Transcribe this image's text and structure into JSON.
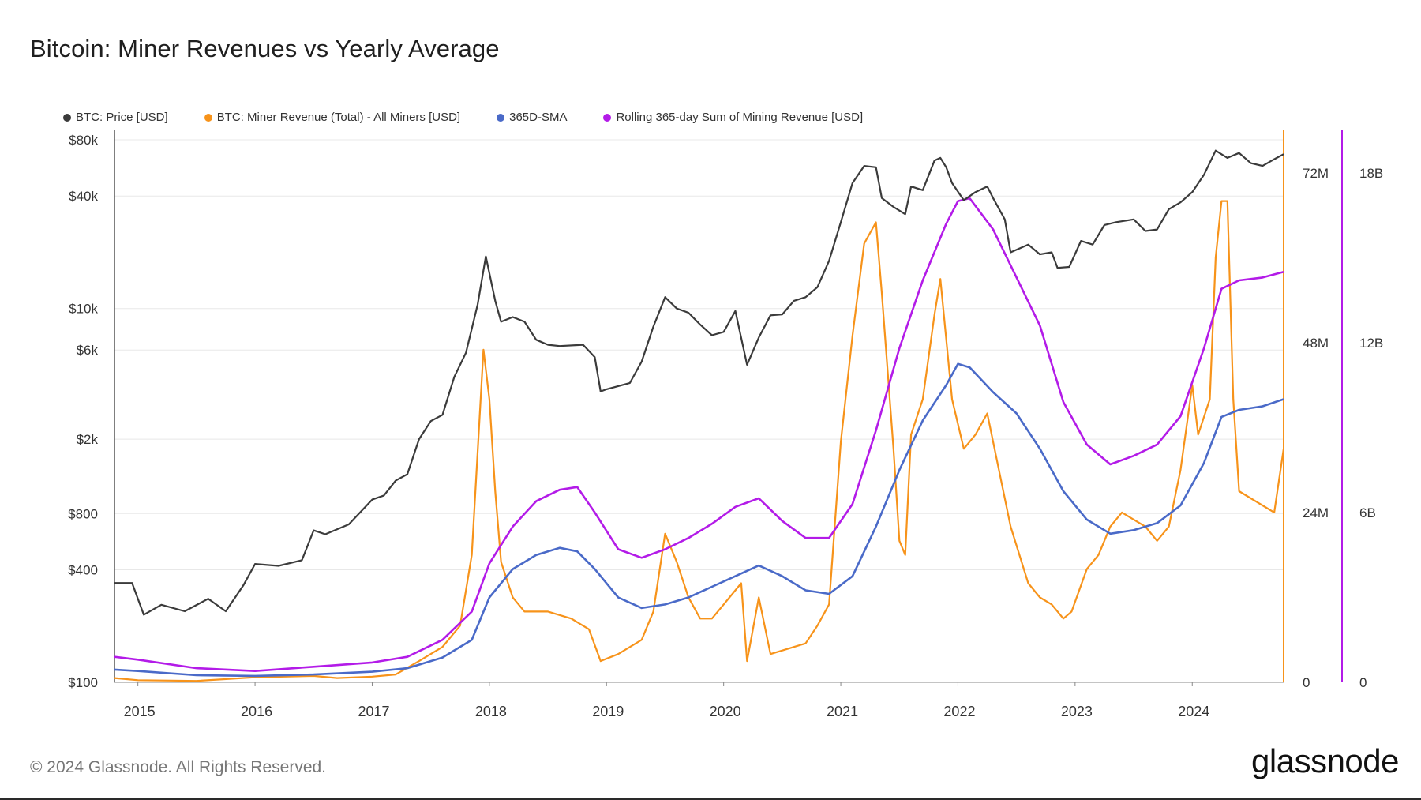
{
  "title": "Bitcoin: Miner Revenues vs Yearly Average",
  "footer": "© 2024 Glassnode. All Rights Reserved.",
  "brand": "glassnode",
  "colors": {
    "price": "#3b3b3b",
    "revenue": "#f7931a",
    "sma": "#4a6ac8",
    "rolling": "#b31be8",
    "grid": "#e8e8e8"
  },
  "chart_data": {
    "type": "line",
    "x_axis": {
      "ticks": [
        "2015",
        "2016",
        "2017",
        "2018",
        "2019",
        "2020",
        "2021",
        "2022",
        "2023",
        "2024"
      ],
      "range": [
        2014.8,
        2024.78
      ]
    },
    "y_left": {
      "scale": "log",
      "ticks": [
        "$100",
        "$400",
        "$800",
        "$2k",
        "$6k",
        "$10k",
        "$40k",
        "$80k"
      ],
      "tick_values": [
        100,
        400,
        800,
        2000,
        6000,
        10000,
        40000,
        80000
      ],
      "range": [
        100,
        80000
      ]
    },
    "y_right_1": {
      "ticks": [
        "0",
        "24M",
        "48M",
        "72M"
      ],
      "tick_values": [
        0,
        24000000,
        48000000,
        72000000
      ],
      "range": [
        0,
        78000000
      ]
    },
    "y_right_2": {
      "ticks": [
        "0",
        "6B",
        "12B",
        "18B"
      ],
      "tick_values": [
        0,
        6000000000,
        12000000000,
        18000000000
      ],
      "range": [
        0,
        19500000000
      ]
    },
    "grid": true,
    "legend_position": "top-left",
    "series": [
      {
        "name": "BTC: Price [USD]",
        "axis": "y_left",
        "points": [
          [
            2014.8,
            340
          ],
          [
            2014.95,
            340
          ],
          [
            2015.05,
            230
          ],
          [
            2015.2,
            260
          ],
          [
            2015.4,
            240
          ],
          [
            2015.6,
            280
          ],
          [
            2015.75,
            240
          ],
          [
            2015.9,
            330
          ],
          [
            2016.0,
            430
          ],
          [
            2016.2,
            420
          ],
          [
            2016.4,
            450
          ],
          [
            2016.5,
            650
          ],
          [
            2016.6,
            620
          ],
          [
            2016.8,
            700
          ],
          [
            2017.0,
            950
          ],
          [
            2017.1,
            1000
          ],
          [
            2017.2,
            1200
          ],
          [
            2017.3,
            1300
          ],
          [
            2017.4,
            2000
          ],
          [
            2017.5,
            2500
          ],
          [
            2017.6,
            2700
          ],
          [
            2017.7,
            4300
          ],
          [
            2017.8,
            5800
          ],
          [
            2017.9,
            10500
          ],
          [
            2017.97,
            19000
          ],
          [
            2018.05,
            11000
          ],
          [
            2018.1,
            8500
          ],
          [
            2018.2,
            9000
          ],
          [
            2018.3,
            8500
          ],
          [
            2018.4,
            6800
          ],
          [
            2018.5,
            6400
          ],
          [
            2018.6,
            6300
          ],
          [
            2018.8,
            6400
          ],
          [
            2018.9,
            5500
          ],
          [
            2018.95,
            3600
          ],
          [
            2019.0,
            3700
          ],
          [
            2019.2,
            4000
          ],
          [
            2019.3,
            5200
          ],
          [
            2019.4,
            8000
          ],
          [
            2019.5,
            11500
          ],
          [
            2019.6,
            10000
          ],
          [
            2019.7,
            9500
          ],
          [
            2019.8,
            8200
          ],
          [
            2019.9,
            7200
          ],
          [
            2020.0,
            7500
          ],
          [
            2020.1,
            9700
          ],
          [
            2020.2,
            5000
          ],
          [
            2020.3,
            7000
          ],
          [
            2020.4,
            9200
          ],
          [
            2020.5,
            9300
          ],
          [
            2020.6,
            11000
          ],
          [
            2020.7,
            11500
          ],
          [
            2020.8,
            13000
          ],
          [
            2020.9,
            18000
          ],
          [
            2021.0,
            29000
          ],
          [
            2021.1,
            47000
          ],
          [
            2021.2,
            58000
          ],
          [
            2021.3,
            57000
          ],
          [
            2021.35,
            39000
          ],
          [
            2021.45,
            35000
          ],
          [
            2021.55,
            32000
          ],
          [
            2021.6,
            45000
          ],
          [
            2021.7,
            43000
          ],
          [
            2021.8,
            62000
          ],
          [
            2021.85,
            64000
          ],
          [
            2021.9,
            57000
          ],
          [
            2021.95,
            47000
          ],
          [
            2022.05,
            38000
          ],
          [
            2022.15,
            42000
          ],
          [
            2022.25,
            45000
          ],
          [
            2022.3,
            39000
          ],
          [
            2022.4,
            30000
          ],
          [
            2022.45,
            20000
          ],
          [
            2022.6,
            22000
          ],
          [
            2022.7,
            19500
          ],
          [
            2022.8,
            20000
          ],
          [
            2022.85,
            16500
          ],
          [
            2022.95,
            16700
          ],
          [
            2023.05,
            23000
          ],
          [
            2023.15,
            22000
          ],
          [
            2023.25,
            28000
          ],
          [
            2023.35,
            29000
          ],
          [
            2023.5,
            30000
          ],
          [
            2023.6,
            26000
          ],
          [
            2023.7,
            26500
          ],
          [
            2023.8,
            34000
          ],
          [
            2023.9,
            37000
          ],
          [
            2024.0,
            42000
          ],
          [
            2024.1,
            52000
          ],
          [
            2024.2,
            70000
          ],
          [
            2024.3,
            64000
          ],
          [
            2024.4,
            68000
          ],
          [
            2024.5,
            60000
          ],
          [
            2024.6,
            58000
          ],
          [
            2024.7,
            63000
          ],
          [
            2024.78,
            67000
          ]
        ]
      },
      {
        "name": "BTC: Miner Revenue (Total) - All Miners [USD]",
        "axis": "y_right_1",
        "points": [
          [
            2014.8,
            600000
          ],
          [
            2015.0,
            300000
          ],
          [
            2015.5,
            200000
          ],
          [
            2016.0,
            700000
          ],
          [
            2016.5,
            900000
          ],
          [
            2016.7,
            600000
          ],
          [
            2017.0,
            800000
          ],
          [
            2017.2,
            1100000
          ],
          [
            2017.4,
            3000000
          ],
          [
            2017.6,
            5000000
          ],
          [
            2017.75,
            8000000
          ],
          [
            2017.85,
            18000000
          ],
          [
            2017.95,
            47000000
          ],
          [
            2018.0,
            40000000
          ],
          [
            2018.05,
            27000000
          ],
          [
            2018.1,
            17000000
          ],
          [
            2018.2,
            12000000
          ],
          [
            2018.3,
            10000000
          ],
          [
            2018.5,
            10000000
          ],
          [
            2018.7,
            9000000
          ],
          [
            2018.85,
            7500000
          ],
          [
            2018.95,
            3000000
          ],
          [
            2019.1,
            4000000
          ],
          [
            2019.3,
            6000000
          ],
          [
            2019.4,
            10000000
          ],
          [
            2019.5,
            21000000
          ],
          [
            2019.6,
            17000000
          ],
          [
            2019.7,
            12000000
          ],
          [
            2019.8,
            9000000
          ],
          [
            2019.9,
            9000000
          ],
          [
            2020.0,
            11000000
          ],
          [
            2020.15,
            14000000
          ],
          [
            2020.2,
            3000000
          ],
          [
            2020.3,
            12000000
          ],
          [
            2020.4,
            4000000
          ],
          [
            2020.5,
            4500000
          ],
          [
            2020.6,
            5000000
          ],
          [
            2020.7,
            5500000
          ],
          [
            2020.8,
            8000000
          ],
          [
            2020.9,
            11000000
          ],
          [
            2021.0,
            34000000
          ],
          [
            2021.1,
            49000000
          ],
          [
            2021.2,
            62000000
          ],
          [
            2021.3,
            65000000
          ],
          [
            2021.35,
            55000000
          ],
          [
            2021.45,
            33000000
          ],
          [
            2021.5,
            20000000
          ],
          [
            2021.55,
            18000000
          ],
          [
            2021.6,
            35000000
          ],
          [
            2021.7,
            40000000
          ],
          [
            2021.8,
            52000000
          ],
          [
            2021.85,
            57000000
          ],
          [
            2021.95,
            40000000
          ],
          [
            2022.05,
            33000000
          ],
          [
            2022.15,
            35000000
          ],
          [
            2022.25,
            38000000
          ],
          [
            2022.35,
            30000000
          ],
          [
            2022.45,
            22000000
          ],
          [
            2022.6,
            14000000
          ],
          [
            2022.7,
            12000000
          ],
          [
            2022.8,
            11000000
          ],
          [
            2022.9,
            9000000
          ],
          [
            2022.97,
            10000000
          ],
          [
            2023.1,
            16000000
          ],
          [
            2023.2,
            18000000
          ],
          [
            2023.3,
            22000000
          ],
          [
            2023.4,
            24000000
          ],
          [
            2023.5,
            23000000
          ],
          [
            2023.6,
            22000000
          ],
          [
            2023.7,
            20000000
          ],
          [
            2023.8,
            22000000
          ],
          [
            2023.9,
            30000000
          ],
          [
            2024.0,
            42000000
          ],
          [
            2024.05,
            35000000
          ],
          [
            2024.15,
            40000000
          ],
          [
            2024.2,
            60000000
          ],
          [
            2024.25,
            68000000
          ],
          [
            2024.3,
            68000000
          ],
          [
            2024.35,
            40000000
          ],
          [
            2024.4,
            27000000
          ],
          [
            2024.5,
            26000000
          ],
          [
            2024.6,
            25000000
          ],
          [
            2024.7,
            24000000
          ],
          [
            2024.78,
            33000000
          ]
        ]
      },
      {
        "name": "365D-SMA",
        "axis": "y_right_1",
        "points": [
          [
            2014.8,
            1800000
          ],
          [
            2015.0,
            1600000
          ],
          [
            2015.5,
            1000000
          ],
          [
            2016.0,
            900000
          ],
          [
            2016.5,
            1100000
          ],
          [
            2017.0,
            1500000
          ],
          [
            2017.3,
            2000000
          ],
          [
            2017.6,
            3500000
          ],
          [
            2017.85,
            6000000
          ],
          [
            2018.0,
            12000000
          ],
          [
            2018.2,
            16000000
          ],
          [
            2018.4,
            18000000
          ],
          [
            2018.6,
            19000000
          ],
          [
            2018.75,
            18500000
          ],
          [
            2018.9,
            16000000
          ],
          [
            2019.1,
            12000000
          ],
          [
            2019.3,
            10500000
          ],
          [
            2019.5,
            11000000
          ],
          [
            2019.7,
            12000000
          ],
          [
            2019.9,
            13500000
          ],
          [
            2020.1,
            15000000
          ],
          [
            2020.3,
            16500000
          ],
          [
            2020.5,
            15000000
          ],
          [
            2020.7,
            13000000
          ],
          [
            2020.9,
            12500000
          ],
          [
            2021.1,
            15000000
          ],
          [
            2021.3,
            22000000
          ],
          [
            2021.5,
            30000000
          ],
          [
            2021.7,
            37000000
          ],
          [
            2021.9,
            42000000
          ],
          [
            2022.0,
            45000000
          ],
          [
            2022.1,
            44500000
          ],
          [
            2022.3,
            41000000
          ],
          [
            2022.5,
            38000000
          ],
          [
            2022.7,
            33000000
          ],
          [
            2022.9,
            27000000
          ],
          [
            2023.1,
            23000000
          ],
          [
            2023.3,
            21000000
          ],
          [
            2023.5,
            21500000
          ],
          [
            2023.7,
            22500000
          ],
          [
            2023.9,
            25000000
          ],
          [
            2024.1,
            31000000
          ],
          [
            2024.25,
            37500000
          ],
          [
            2024.4,
            38500000
          ],
          [
            2024.6,
            39000000
          ],
          [
            2024.78,
            40000000
          ]
        ]
      },
      {
        "name": "Rolling 365-day Sum of Mining Revenue [USD]",
        "axis": "y_right_2",
        "points": [
          [
            2014.8,
            900000000
          ],
          [
            2015.0,
            800000000
          ],
          [
            2015.5,
            500000000
          ],
          [
            2016.0,
            400000000
          ],
          [
            2016.5,
            550000000
          ],
          [
            2017.0,
            700000000
          ],
          [
            2017.3,
            900000000
          ],
          [
            2017.6,
            1500000000
          ],
          [
            2017.85,
            2500000000
          ],
          [
            2018.0,
            4200000000
          ],
          [
            2018.2,
            5500000000
          ],
          [
            2018.4,
            6400000000
          ],
          [
            2018.6,
            6800000000
          ],
          [
            2018.75,
            6900000000
          ],
          [
            2018.9,
            6000000000
          ],
          [
            2019.1,
            4700000000
          ],
          [
            2019.3,
            4400000000
          ],
          [
            2019.5,
            4700000000
          ],
          [
            2019.7,
            5100000000
          ],
          [
            2019.9,
            5600000000
          ],
          [
            2020.1,
            6200000000
          ],
          [
            2020.3,
            6500000000
          ],
          [
            2020.5,
            5700000000
          ],
          [
            2020.7,
            5100000000
          ],
          [
            2020.9,
            5100000000
          ],
          [
            2021.1,
            6300000000
          ],
          [
            2021.3,
            8900000000
          ],
          [
            2021.5,
            11800000000
          ],
          [
            2021.7,
            14200000000
          ],
          [
            2021.9,
            16200000000
          ],
          [
            2022.0,
            17000000000
          ],
          [
            2022.1,
            17100000000
          ],
          [
            2022.3,
            16000000000
          ],
          [
            2022.5,
            14300000000
          ],
          [
            2022.7,
            12600000000
          ],
          [
            2022.9,
            9900000000
          ],
          [
            2023.1,
            8400000000
          ],
          [
            2023.3,
            7700000000
          ],
          [
            2023.5,
            8000000000
          ],
          [
            2023.7,
            8400000000
          ],
          [
            2023.9,
            9400000000
          ],
          [
            2024.1,
            11800000000
          ],
          [
            2024.25,
            13900000000
          ],
          [
            2024.4,
            14200000000
          ],
          [
            2024.6,
            14300000000
          ],
          [
            2024.78,
            14500000000
          ]
        ]
      }
    ]
  }
}
